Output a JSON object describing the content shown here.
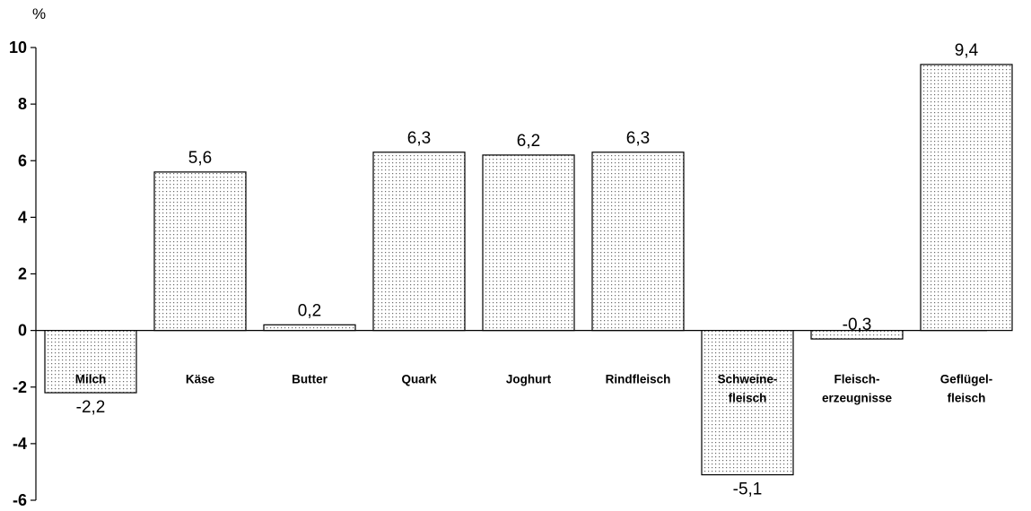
{
  "chart_data": {
    "type": "bar",
    "y_unit": "%",
    "categories": [
      [
        "Milch"
      ],
      [
        "Käse"
      ],
      [
        "Butter"
      ],
      [
        "Quark"
      ],
      [
        "Joghurt"
      ],
      [
        "Rindfleisch"
      ],
      [
        "Schweine-",
        "fleisch"
      ],
      [
        "Fleisch-",
        "erzeugnisse"
      ],
      [
        "Geflügel-",
        "fleisch"
      ]
    ],
    "values": [
      -2.2,
      5.6,
      0.2,
      6.3,
      6.2,
      6.3,
      -5.1,
      -0.3,
      9.4
    ],
    "value_labels": [
      "-2,2",
      "5,6",
      "0,2",
      "6,3",
      "6,2",
      "6,3",
      "-5,1",
      "-0,3",
      "9,4"
    ],
    "yticks": [
      10,
      8,
      6,
      4,
      2,
      0,
      -2,
      -4,
      -6
    ],
    "ylim": [
      -6,
      10
    ],
    "grid": false,
    "bar_fill": "dotted"
  }
}
